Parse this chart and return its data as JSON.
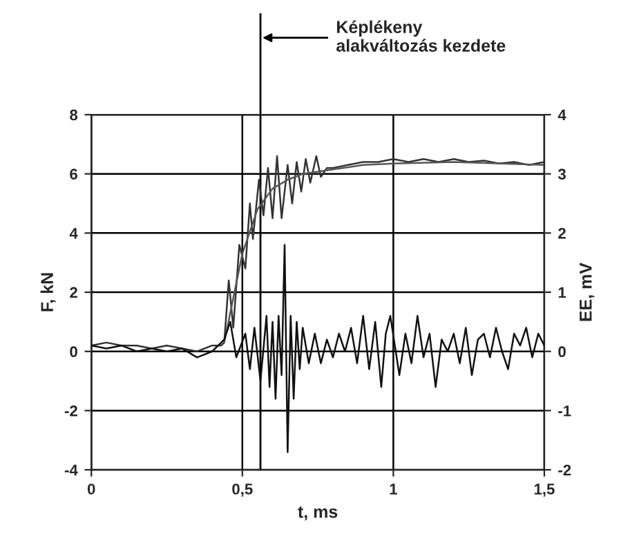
{
  "chart_data": {
    "type": "line",
    "xlabel": "t, ms",
    "ylabel": "F, kN",
    "y2label": "EE, mV",
    "xlim": [
      0,
      1.5
    ],
    "xticks": [
      0,
      {
        "value": 0.5,
        "label": "0,5"
      },
      1,
      {
        "value": 1.5,
        "label": "1,5"
      }
    ],
    "ylim": [
      -4,
      8
    ],
    "yticks": [
      -4,
      -2,
      0,
      2,
      4,
      6,
      8
    ],
    "y2lim": [
      -2,
      4
    ],
    "y2ticks": [
      -2,
      -1,
      0,
      1,
      2,
      3,
      4
    ],
    "grid": true,
    "marker": "none",
    "line_style": "solid",
    "ref_lines": [
      {
        "axis": "x",
        "value": 0.56,
        "label": "Képlékeny\nalakváltozás kezdete",
        "color": "#000000"
      }
    ],
    "series": [
      {
        "color": "#333333",
        "x": [
          0,
          0.05,
          0.1,
          0.15,
          0.2,
          0.25,
          0.3,
          0.35,
          0.4,
          0.43,
          0.44,
          0.455,
          0.47,
          0.49,
          0.51,
          0.525,
          0.535,
          0.555,
          0.57,
          0.585,
          0.6,
          0.615,
          0.63,
          0.65,
          0.665,
          0.68,
          0.695,
          0.71,
          0.725,
          0.745,
          0.76,
          0.78,
          0.8,
          0.85,
          0.9,
          0.95,
          1.0,
          1.05,
          1.1,
          1.15,
          1.2,
          1.25,
          1.3,
          1.35,
          1.4,
          1.45,
          1.5
        ],
        "values": [
          0.2,
          0.3,
          0.2,
          0.2,
          0.1,
          0.2,
          0.1,
          0.0,
          0.2,
          0.2,
          0.3,
          2.4,
          0.8,
          3.6,
          2.8,
          5.0,
          3.8,
          5.8,
          4.6,
          6.2,
          4.5,
          6.6,
          4.5,
          6.3,
          5.0,
          6.4,
          5.4,
          6.5,
          5.7,
          6.6,
          5.9,
          6.2,
          6.2,
          6.3,
          6.4,
          6.4,
          6.5,
          6.4,
          6.5,
          6.4,
          6.5,
          6.4,
          6.45,
          6.35,
          6.4,
          6.3,
          6.4
        ]
      },
      {
        "color": "#555555",
        "x": [
          0.44,
          0.47,
          0.5,
          0.55,
          0.6,
          0.65,
          0.7,
          0.8,
          0.9,
          1.0,
          1.2,
          1.5
        ],
        "values": [
          0.3,
          1.8,
          3.3,
          4.8,
          5.5,
          5.8,
          6.0,
          6.15,
          6.3,
          6.35,
          6.4,
          6.3
        ]
      },
      {
        "axis": "y2",
        "color": "#111111",
        "x": [
          0,
          0.05,
          0.1,
          0.15,
          0.2,
          0.25,
          0.3,
          0.35,
          0.4,
          0.44,
          0.46,
          0.48,
          0.51,
          0.525,
          0.54,
          0.56,
          0.58,
          0.59,
          0.6,
          0.61,
          0.62,
          0.63,
          0.64,
          0.65,
          0.66,
          0.67,
          0.68,
          0.69,
          0.7,
          0.72,
          0.74,
          0.76,
          0.78,
          0.8,
          0.82,
          0.84,
          0.86,
          0.88,
          0.9,
          0.92,
          0.94,
          0.96,
          0.975,
          0.99,
          1.02,
          1.04,
          1.06,
          1.08,
          1.1,
          1.12,
          1.14,
          1.16,
          1.18,
          1.2,
          1.22,
          1.24,
          1.26,
          1.28,
          1.3,
          1.32,
          1.34,
          1.36,
          1.38,
          1.4,
          1.42,
          1.44,
          1.46,
          1.48,
          1.5
        ],
        "values": [
          0.1,
          0.05,
          0.1,
          0.0,
          0.05,
          0.0,
          0.05,
          -0.1,
          0.0,
          0.2,
          0.5,
          -0.1,
          0.3,
          -0.3,
          0.4,
          -0.5,
          0.6,
          -0.6,
          0.5,
          -0.8,
          0.6,
          -0.4,
          1.8,
          -1.7,
          0.6,
          -0.8,
          0.5,
          -0.3,
          0.4,
          -0.2,
          0.3,
          -0.2,
          0.2,
          -0.1,
          0.3,
          0.0,
          0.4,
          -0.2,
          0.6,
          -0.3,
          0.5,
          -0.6,
          0.3,
          0.6,
          -0.4,
          0.3,
          -0.2,
          0.6,
          -0.1,
          0.3,
          -0.6,
          0.2,
          0.0,
          0.3,
          -0.2,
          0.4,
          -0.4,
          0.2,
          0.3,
          -0.1,
          0.4,
          0.0,
          -0.3,
          0.3,
          0.1,
          0.4,
          -0.1,
          0.3,
          0.1
        ]
      }
    ]
  }
}
